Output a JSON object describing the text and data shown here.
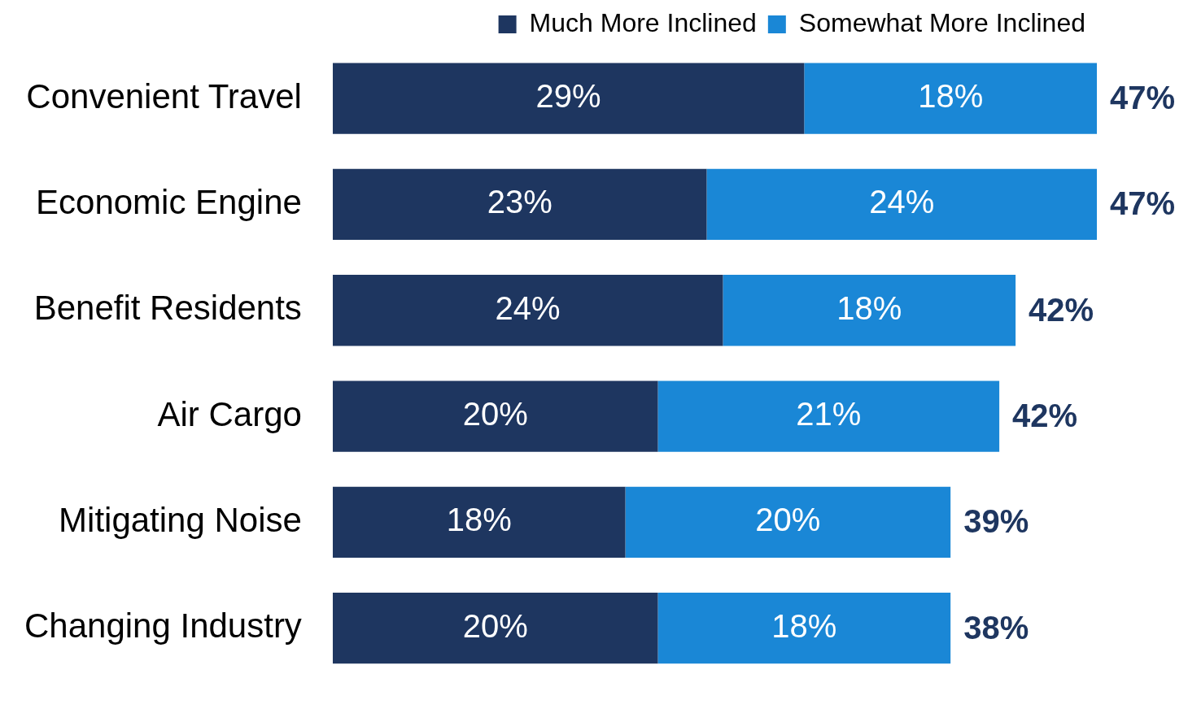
{
  "chart_data": {
    "type": "bar",
    "orientation": "horizontal",
    "stacked": true,
    "categories": [
      "Convenient Travel",
      "Economic Engine",
      "Benefit Residents",
      "Air Cargo",
      "Mitigating Noise",
      "Changing Industry"
    ],
    "series": [
      {
        "name": "Much More Inclined",
        "color": "#1e3660",
        "values": [
          29,
          23,
          24,
          20,
          18,
          20
        ],
        "value_labels": [
          "29%",
          "23%",
          "24%",
          "20%",
          "18%",
          "20%"
        ]
      },
      {
        "name": "Somewhat More Inclined",
        "color": "#1a87d6",
        "values": [
          18,
          24,
          18,
          21,
          20,
          18
        ],
        "value_labels": [
          "18%",
          "24%",
          "18%",
          "21%",
          "20%",
          "18%"
        ]
      }
    ],
    "totals": [
      "47%",
      "47%",
      "42%",
      "42%",
      "39%",
      "38%"
    ],
    "xlim": [
      0,
      47
    ],
    "legend": "top",
    "grid": false,
    "tick_labels": "y"
  }
}
